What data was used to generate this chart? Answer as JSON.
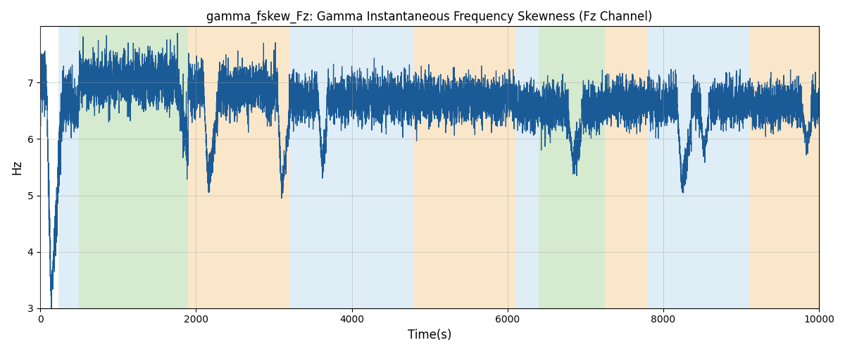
{
  "title": "gamma_fskew_Fz: Gamma Instantaneous Frequency Skewness (Fz Channel)",
  "xlabel": "Time(s)",
  "ylabel": "Hz",
  "xlim": [
    0,
    10000
  ],
  "ylim": [
    3,
    8
  ],
  "yticks": [
    3,
    4,
    5,
    6,
    7
  ],
  "xticks": [
    0,
    2000,
    4000,
    6000,
    8000,
    10000
  ],
  "background_bands": [
    {
      "xmin": 230,
      "xmax": 500,
      "color": "#c5dff0",
      "alpha": 0.55
    },
    {
      "xmin": 500,
      "xmax": 1900,
      "color": "#b5d9a8",
      "alpha": 0.55
    },
    {
      "xmin": 1900,
      "xmax": 3200,
      "color": "#f7d8a8",
      "alpha": 0.6
    },
    {
      "xmin": 3200,
      "xmax": 3500,
      "color": "#c5dff0",
      "alpha": 0.55
    },
    {
      "xmin": 3500,
      "xmax": 4800,
      "color": "#c5dff0",
      "alpha": 0.55
    },
    {
      "xmin": 4800,
      "xmax": 5500,
      "color": "#f7d8a8",
      "alpha": 0.6
    },
    {
      "xmin": 5500,
      "xmax": 6100,
      "color": "#f7d8a8",
      "alpha": 0.6
    },
    {
      "xmin": 6100,
      "xmax": 6400,
      "color": "#c5dff0",
      "alpha": 0.55
    },
    {
      "xmin": 6400,
      "xmax": 7250,
      "color": "#b5d9a8",
      "alpha": 0.55
    },
    {
      "xmin": 7250,
      "xmax": 7800,
      "color": "#f7d8a8",
      "alpha": 0.6
    },
    {
      "xmin": 7800,
      "xmax": 9100,
      "color": "#c5dff0",
      "alpha": 0.55
    },
    {
      "xmin": 9100,
      "xmax": 10100,
      "color": "#f7d8a8",
      "alpha": 0.6
    }
  ],
  "line_color": "#1a5a96",
  "line_width": 0.9,
  "figsize": [
    12,
    5
  ],
  "dpi": 100,
  "grid_color": "#999999",
  "grid_alpha": 0.45,
  "grid_linewidth": 0.6
}
